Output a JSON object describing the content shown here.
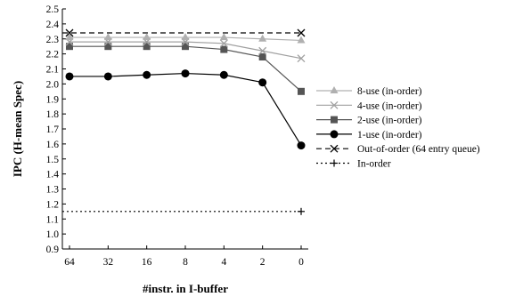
{
  "chart_data": {
    "type": "line",
    "title": "",
    "xlabel": "#instr. in I-buffer",
    "ylabel": "IPC (H-mean Spec)",
    "categories": [
      "64",
      "32",
      "16",
      "8",
      "4",
      "2",
      "0"
    ],
    "ylim": [
      0.9,
      2.5
    ],
    "yticks": [
      "0.9",
      "1.0",
      "1.1",
      "1.2",
      "1.3",
      "1.4",
      "1.5",
      "1.6",
      "1.7",
      "1.8",
      "1.9",
      "2.0",
      "2.1",
      "2.2",
      "2.3",
      "2.4",
      "2.5"
    ],
    "grid": false,
    "legend_position": "right",
    "series": [
      {
        "name": "8-use (in-order)",
        "values": [
          2.31,
          2.31,
          2.31,
          2.31,
          2.31,
          2.3,
          2.29
        ],
        "color": "#b0b0b0",
        "marker": "triangle",
        "dash": "solid"
      },
      {
        "name": "4-use (in-order)",
        "values": [
          2.28,
          2.28,
          2.28,
          2.28,
          2.27,
          2.22,
          2.17
        ],
        "color": "#a0a0a0",
        "marker": "x",
        "dash": "solid"
      },
      {
        "name": "2-use (in-order)",
        "values": [
          2.25,
          2.25,
          2.25,
          2.25,
          2.23,
          2.18,
          1.95
        ],
        "color": "#555555",
        "marker": "square",
        "dash": "solid"
      },
      {
        "name": "1-use (in-order)",
        "values": [
          2.05,
          2.05,
          2.06,
          2.07,
          2.06,
          2.01,
          1.59
        ],
        "color": "#000000",
        "marker": "circle",
        "dash": "solid"
      },
      {
        "name": "Out-of-order (64 entry queue)",
        "values": [
          2.34,
          2.34,
          2.34,
          2.34,
          2.34,
          2.34,
          2.34
        ],
        "color": "#000000",
        "marker": "x-end",
        "dash": "dashed"
      },
      {
        "name": "In-order",
        "values": [
          1.15,
          1.15,
          1.15,
          1.15,
          1.15,
          1.15,
          1.15
        ],
        "color": "#000000",
        "marker": "plus-end",
        "dash": "dotted"
      }
    ]
  }
}
